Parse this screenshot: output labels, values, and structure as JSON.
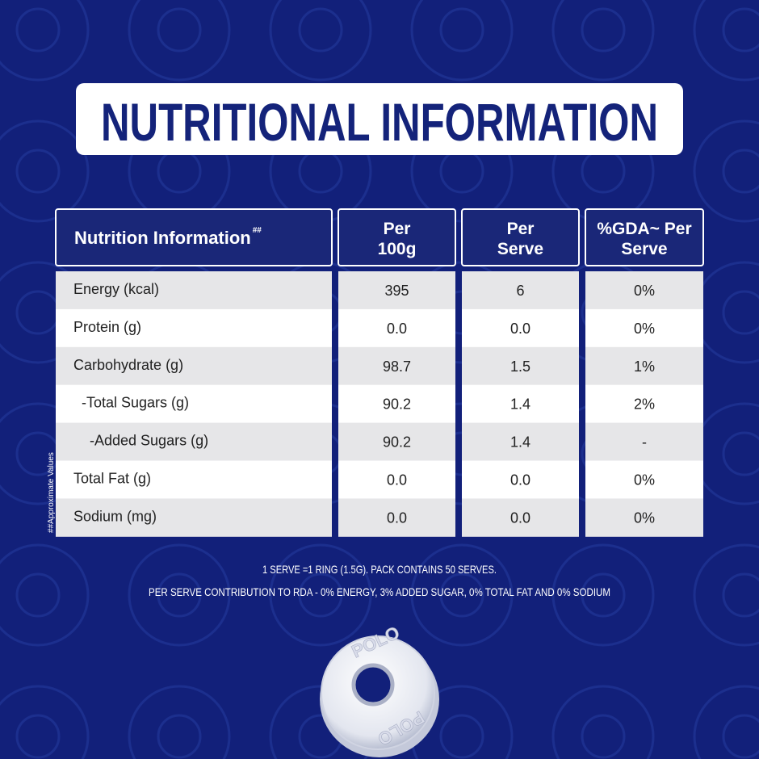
{
  "header": {
    "title": "NUTRITIONAL INFORMATION"
  },
  "table": {
    "headers": [
      {
        "text": "Nutrition Information",
        "sup": "##"
      },
      {
        "text": "Per 100g"
      },
      {
        "text": "Per Serve"
      },
      {
        "text": "%GDA~ Per Serve"
      }
    ],
    "rows": [
      [
        "Energy (kcal)",
        "395",
        "6",
        "0%"
      ],
      [
        "Protein (g)",
        "0.0",
        "0.0",
        "0%"
      ],
      [
        "Carbohydrate (g)",
        "98.7",
        "1.5",
        "1%"
      ],
      [
        "-Total Sugars (g)",
        "90.2",
        "1.4",
        "2%"
      ],
      [
        "-Added Sugars (g)",
        "90.2",
        "1.4",
        "-"
      ],
      [
        "Total Fat (g)",
        "0.0",
        "0.0",
        "0%"
      ],
      [
        "Sodium (mg)",
        "0.0",
        "0.0",
        "0%"
      ]
    ]
  },
  "side_note": "##Approximate Values",
  "footnotes": [
    "1 SERVE =1 RING (1.5G). PACK CONTAINS 50 SERVES.",
    "PER SERVE CONTRIBUTION TO RDA - 0% ENERGY, 3% ADDED SUGAR, 0% TOTAL FAT AND 0% SODIUM"
  ],
  "candy": {
    "text": "POLO"
  }
}
